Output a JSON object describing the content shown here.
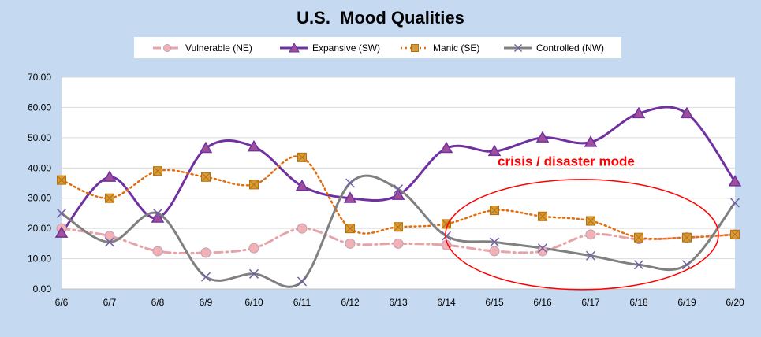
{
  "chart_data": {
    "type": "line",
    "title": "U.S.  Mood Qualities",
    "xlabel": "",
    "ylabel": "",
    "categories": [
      "6/6",
      "6/7",
      "6/8",
      "6/9",
      "6/10",
      "6/11",
      "6/12",
      "6/13",
      "6/14",
      "6/15",
      "6/16",
      "6/17",
      "6/18",
      "6/19",
      "6/20"
    ],
    "ylim": [
      0,
      70
    ],
    "yticks": [
      "0.00",
      "10.00",
      "20.00",
      "30.00",
      "40.00",
      "50.00",
      "60.00",
      "70.00"
    ],
    "grid": "horizontal",
    "legend_position": "top",
    "series": [
      {
        "name": "Vulnerable (NE)",
        "color": "#e6a3a8",
        "marker": "circle",
        "line_style": "dash-dot",
        "values": [
          20,
          17.5,
          12.5,
          12,
          13.5,
          20,
          15,
          15,
          14.5,
          12.5,
          12.5,
          18,
          16.5,
          17,
          18
        ]
      },
      {
        "name": "Expansive (SW)",
        "color": "#7030a0",
        "marker": "triangle",
        "line_style": "solid",
        "values": [
          18.5,
          37,
          23.5,
          46.5,
          47,
          34,
          30,
          31,
          46.5,
          45.5,
          50,
          48.5,
          58,
          58,
          35.5
        ]
      },
      {
        "name": "Manic (SE)",
        "color": "#e46c0a",
        "marker": "square",
        "line_style": "dotted",
        "values": [
          36,
          30,
          39,
          37,
          34.5,
          43.5,
          20,
          20.5,
          21.5,
          26,
          24,
          22.5,
          17,
          17,
          18
        ]
      },
      {
        "name": "Controlled (NW)",
        "color": "#808080",
        "marker": "x",
        "line_style": "solid",
        "values": [
          25,
          15.5,
          25,
          4,
          5,
          2.5,
          35,
          33,
          17.5,
          15.5,
          13.5,
          11,
          8,
          8,
          28.5
        ]
      }
    ],
    "annotations": [
      {
        "text": "crisis / disaster mode",
        "color": "#ff0000",
        "x_category": "6/16",
        "y": 40
      },
      {
        "shape": "ellipse",
        "color": "#ff0000",
        "center_category": "6/16",
        "center_y": 18,
        "note": "circled region 6/14 to 6/19"
      }
    ]
  }
}
